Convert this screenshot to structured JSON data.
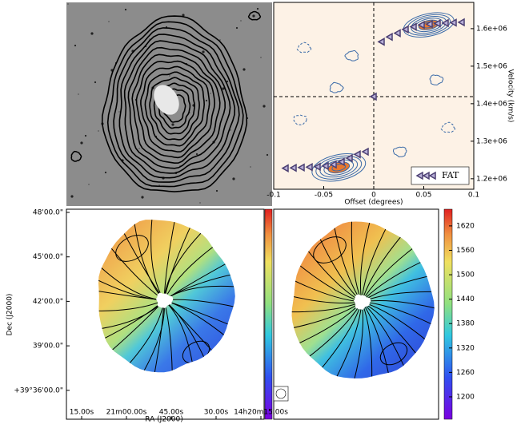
{
  "chart_data": [
    {
      "type": "image"
    },
    {
      "type": "pv",
      "xlabel": "Offset (degrees)",
      "ylabel": "Velocity (km/s)",
      "xlim": [
        -0.1,
        0.1
      ],
      "xticks": [
        -0.1,
        -0.05,
        0,
        0.05,
        0.1
      ],
      "ylim": [
        1172000,
        1670000
      ],
      "yticks": [
        {
          "value": 1200000,
          "label": "1.2e+06"
        },
        {
          "value": 1300000,
          "label": "1.3e+06"
        },
        {
          "value": 1400000,
          "label": "1.4e+06"
        },
        {
          "value": 1500000,
          "label": "1.5e+06"
        },
        {
          "value": 1600000,
          "label": "1.6e+06"
        }
      ],
      "legend": "lower right",
      "series": [
        {
          "name": "FAT",
          "color": "#4b3f72",
          "x": [
            -0.088,
            -0.08,
            -0.072,
            -0.064,
            -0.056,
            -0.048,
            -0.04,
            -0.032,
            -0.024,
            -0.016,
            -0.008,
            0,
            0.008,
            0.016,
            0.024,
            0.032,
            0.04,
            0.048,
            0.056,
            0.064,
            0.072,
            0.08,
            0.088
          ],
          "values": [
            1228000,
            1229000,
            1230000,
            1231000,
            1232000,
            1234000,
            1238000,
            1245000,
            1255000,
            1265000,
            1272000,
            1419000,
            1565000,
            1578000,
            1588000,
            1598000,
            1605000,
            1610000,
            1612000,
            1614000,
            1615000,
            1616000,
            1617000
          ]
        }
      ]
    },
    {
      "type": "map",
      "xlabel": "RA (J2000)",
      "ylabel": "Dec (J2000)",
      "xtick_labels": [
        "15.00s",
        "21m00.00s",
        "45.00s",
        "30.00s",
        "14h20m15.00s"
      ],
      "ytick_labels": [
        "48'00.0\"",
        "45'00.0\"",
        "42'00.0\"",
        "39'00.0\"",
        "+39°36'00.0\""
      ]
    },
    {
      "type": "map",
      "colorbar": {
        "ylim": [
          1145,
          1661
        ],
        "yticks": [
          1200,
          1260,
          1320,
          1380,
          1440,
          1500,
          1560,
          1620
        ]
      }
    }
  ]
}
